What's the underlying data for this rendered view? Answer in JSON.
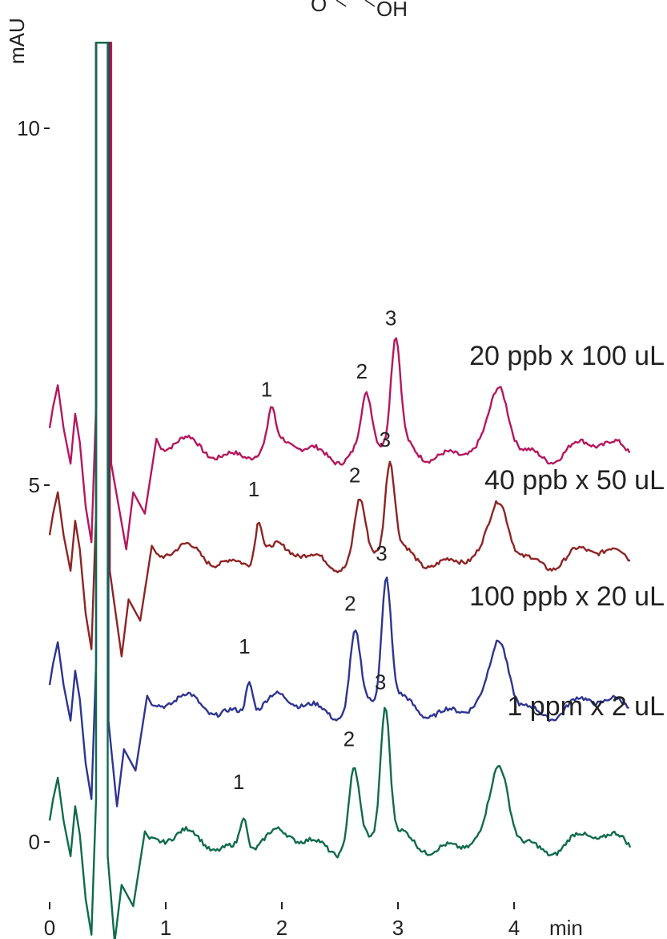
{
  "chart_data": {
    "type": "line",
    "ylabel": "mAU",
    "xlabel": "min",
    "xlim": [
      0,
      5
    ],
    "ylim": [
      -1.5,
      11.5
    ],
    "x_ticks": [
      "0",
      "1",
      "2",
      "3",
      "4"
    ],
    "y_ticks": [
      "0",
      "5",
      "10"
    ],
    "grid": false,
    "structure_fragment": {
      "o_label": "O",
      "oh_label": "OH"
    },
    "series": [
      {
        "name": "20 ppb x 100 uL",
        "color": "#b5175e",
        "baseline": 5.5,
        "offset_x": 0.1,
        "peaks": [
          {
            "label": "1",
            "x": 1.91,
            "y": 5.95
          },
          {
            "label": "2",
            "x": 2.73,
            "y": 6.2
          },
          {
            "label": "3",
            "x": 2.98,
            "y": 6.95
          },
          {
            "x": 3.88,
            "y": 6.25
          }
        ]
      },
      {
        "name": "40 ppb x 50 uL",
        "color": "#8e2424",
        "baseline": 4.0,
        "offset_x": 0.06,
        "peaks": [
          {
            "label": "1",
            "x": 1.8,
            "y": 4.55
          },
          {
            "label": "2",
            "x": 2.67,
            "y": 4.75
          },
          {
            "label": "3",
            "x": 2.93,
            "y": 5.25
          },
          {
            "x": 3.88,
            "y": 4.65
          }
        ]
      },
      {
        "name": "100 ppb x 20 uL",
        "color": "#2e3591",
        "baseline": 1.9,
        "offset_x": 0.02,
        "peaks": [
          {
            "label": "1",
            "x": 1.72,
            "y": 2.35
          },
          {
            "label": "2",
            "x": 2.63,
            "y": 2.95
          },
          {
            "label": "3",
            "x": 2.9,
            "y": 3.65
          },
          {
            "x": 3.88,
            "y": 2.7
          }
        ]
      },
      {
        "name": "1 ppm x 2 uL",
        "color": "#0f6b4e",
        "baseline": 0.0,
        "offset_x": 0.0,
        "peaks": [
          {
            "label": "1",
            "x": 1.67,
            "y": 0.45
          },
          {
            "label": "2",
            "x": 2.62,
            "y": 1.05
          },
          {
            "label": "3",
            "x": 2.89,
            "y": 1.85
          },
          {
            "x": 3.88,
            "y": 0.95
          }
        ]
      }
    ]
  }
}
